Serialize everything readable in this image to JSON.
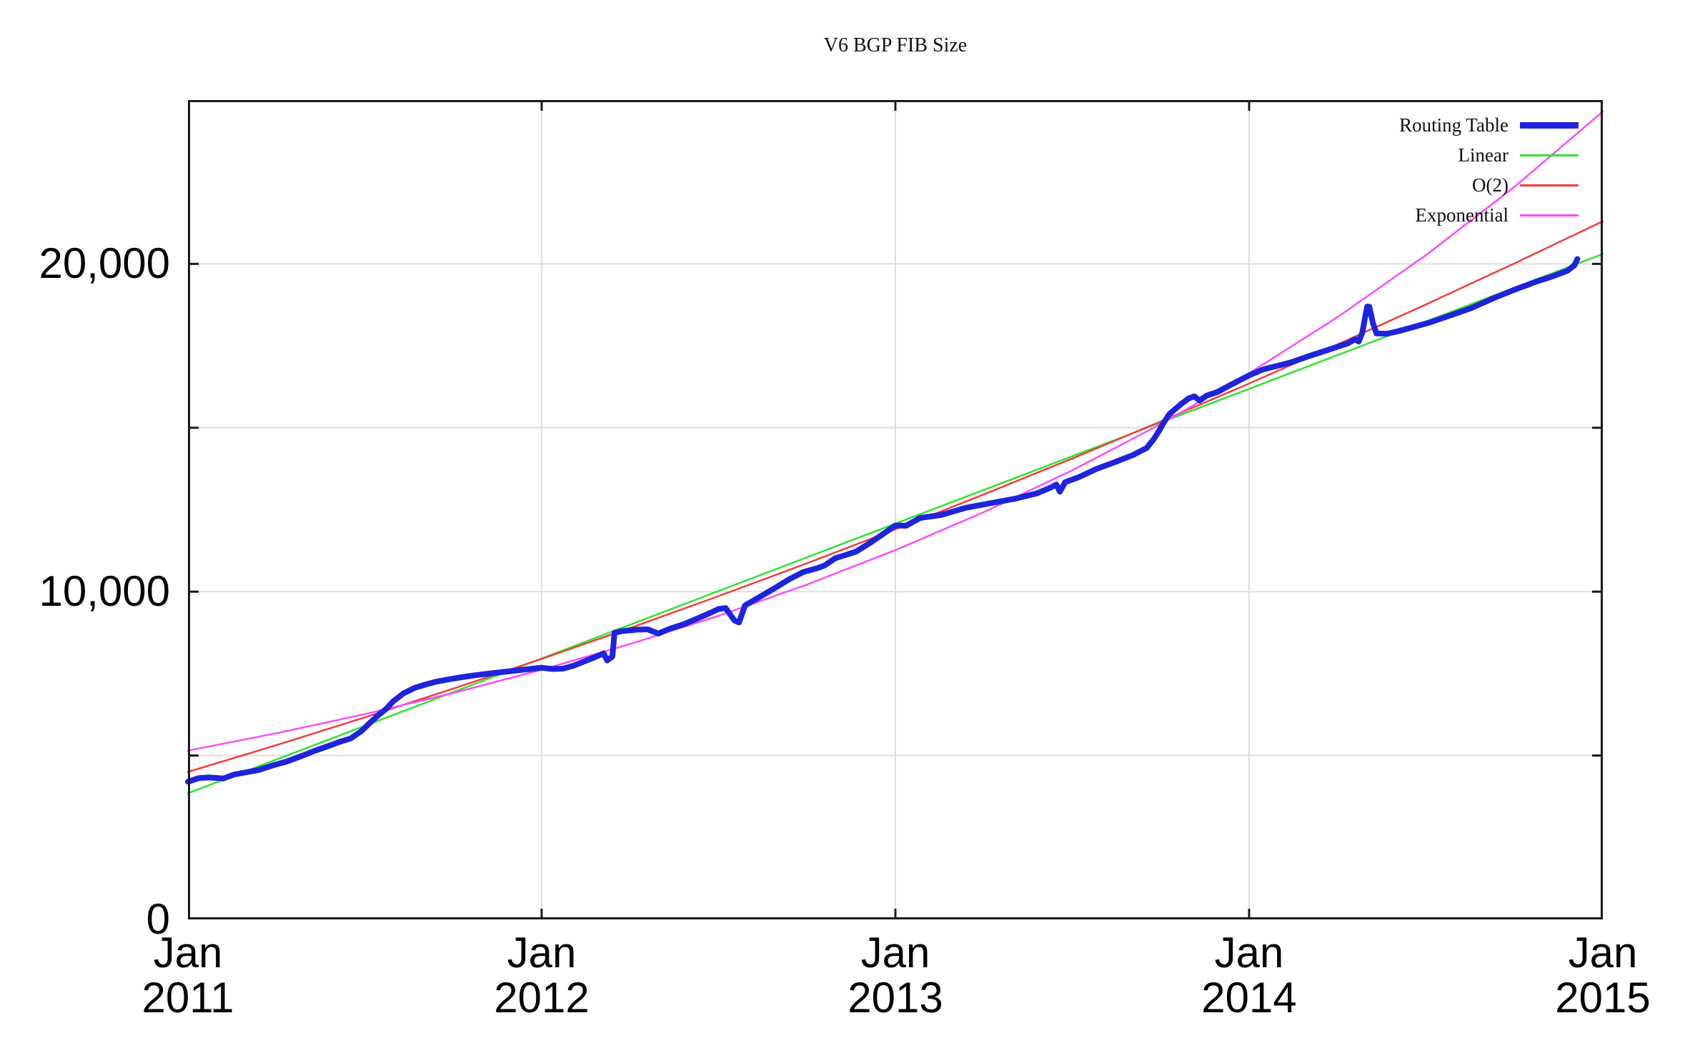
{
  "chart_data": {
    "type": "line",
    "title": "V6 BGP FIB Size",
    "x_axis": {
      "label_month": "Jan",
      "tick_years": [
        2011,
        2012,
        2013,
        2014,
        2015
      ],
      "min_year": 2011,
      "max_year": 2015,
      "gridline_years": [
        2012,
        2013,
        2014
      ]
    },
    "y_axis": {
      "min": 0,
      "max": 25000,
      "labeled_ticks": [
        {
          "value": 0,
          "label": "0"
        },
        {
          "value": 10000,
          "label": "10,000"
        },
        {
          "value": 20000,
          "label": "20,000"
        }
      ],
      "gridline_values": [
        5000,
        10000,
        15000,
        20000
      ],
      "tick_values": [
        5000,
        10000,
        15000,
        20000
      ]
    },
    "legend_position": "top-right-inside",
    "grid": true,
    "colors": {
      "routing_table": "#1e24dc",
      "linear": "#2fe42f",
      "o2": "#f23d3d",
      "exponential": "#fc4cfc",
      "gridline": "#dedede",
      "border": "#1a1a1a"
    },
    "series": [
      {
        "name": "Routing Table",
        "key": "routing_table",
        "color": "#1e24dc",
        "stroke_width": 8,
        "points": [
          [
            2011.0,
            4200
          ],
          [
            2011.03,
            4310
          ],
          [
            2011.06,
            4330
          ],
          [
            2011.1,
            4300
          ],
          [
            2011.13,
            4420
          ],
          [
            2011.16,
            4480
          ],
          [
            2011.2,
            4560
          ],
          [
            2011.24,
            4700
          ],
          [
            2011.28,
            4820
          ],
          [
            2011.32,
            4980
          ],
          [
            2011.36,
            5150
          ],
          [
            2011.4,
            5300
          ],
          [
            2011.43,
            5420
          ],
          [
            2011.46,
            5520
          ],
          [
            2011.49,
            5740
          ],
          [
            2011.51,
            5950
          ],
          [
            2011.54,
            6250
          ],
          [
            2011.56,
            6420
          ],
          [
            2011.58,
            6650
          ],
          [
            2011.61,
            6900
          ],
          [
            2011.64,
            7060
          ],
          [
            2011.67,
            7160
          ],
          [
            2011.7,
            7250
          ],
          [
            2011.74,
            7330
          ],
          [
            2011.78,
            7400
          ],
          [
            2011.82,
            7460
          ],
          [
            2011.86,
            7510
          ],
          [
            2011.9,
            7560
          ],
          [
            2011.95,
            7620
          ],
          [
            2012.0,
            7680
          ],
          [
            2012.03,
            7640
          ],
          [
            2012.06,
            7650
          ],
          [
            2012.09,
            7740
          ],
          [
            2012.12,
            7870
          ],
          [
            2012.15,
            8000
          ],
          [
            2012.175,
            8120
          ],
          [
            2012.185,
            7900
          ],
          [
            2012.2,
            8020
          ],
          [
            2012.206,
            8750
          ],
          [
            2012.23,
            8800
          ],
          [
            2012.27,
            8840
          ],
          [
            2012.3,
            8850
          ],
          [
            2012.33,
            8720
          ],
          [
            2012.36,
            8860
          ],
          [
            2012.4,
            9000
          ],
          [
            2012.44,
            9180
          ],
          [
            2012.47,
            9320
          ],
          [
            2012.5,
            9470
          ],
          [
            2012.52,
            9500
          ],
          [
            2012.545,
            9120
          ],
          [
            2012.558,
            9060
          ],
          [
            2012.575,
            9580
          ],
          [
            2012.61,
            9800
          ],
          [
            2012.65,
            10050
          ],
          [
            2012.7,
            10380
          ],
          [
            2012.74,
            10600
          ],
          [
            2012.78,
            10720
          ],
          [
            2012.8,
            10800
          ],
          [
            2012.83,
            11020
          ],
          [
            2012.86,
            11120
          ],
          [
            2012.89,
            11230
          ],
          [
            2012.93,
            11500
          ],
          [
            2012.96,
            11720
          ],
          [
            2013.0,
            12020
          ],
          [
            2013.03,
            12010
          ],
          [
            2013.07,
            12250
          ],
          [
            2013.13,
            12340
          ],
          [
            2013.2,
            12560
          ],
          [
            2013.27,
            12700
          ],
          [
            2013.34,
            12840
          ],
          [
            2013.4,
            13000
          ],
          [
            2013.44,
            13180
          ],
          [
            2013.455,
            13270
          ],
          [
            2013.465,
            13050
          ],
          [
            2013.48,
            13340
          ],
          [
            2013.52,
            13500
          ],
          [
            2013.57,
            13750
          ],
          [
            2013.62,
            13950
          ],
          [
            2013.67,
            14160
          ],
          [
            2013.71,
            14380
          ],
          [
            2013.73,
            14650
          ],
          [
            2013.745,
            14900
          ],
          [
            2013.76,
            15180
          ],
          [
            2013.775,
            15420
          ],
          [
            2013.79,
            15560
          ],
          [
            2013.81,
            15740
          ],
          [
            2013.83,
            15900
          ],
          [
            2013.845,
            15960
          ],
          [
            2013.86,
            15830
          ],
          [
            2013.88,
            15980
          ],
          [
            2013.91,
            16090
          ],
          [
            2013.95,
            16320
          ],
          [
            2014.0,
            16600
          ],
          [
            2014.04,
            16780
          ],
          [
            2014.08,
            16890
          ],
          [
            2014.12,
            17000
          ],
          [
            2014.17,
            17190
          ],
          [
            2014.23,
            17400
          ],
          [
            2014.28,
            17580
          ],
          [
            2014.3,
            17700
          ],
          [
            2014.31,
            17630
          ],
          [
            2014.32,
            17900
          ],
          [
            2014.327,
            18320
          ],
          [
            2014.334,
            18700
          ],
          [
            2014.34,
            18690
          ],
          [
            2014.35,
            18200
          ],
          [
            2014.36,
            17880
          ],
          [
            2014.39,
            17870
          ],
          [
            2014.42,
            17940
          ],
          [
            2014.46,
            18060
          ],
          [
            2014.51,
            18210
          ],
          [
            2014.57,
            18430
          ],
          [
            2014.63,
            18660
          ],
          [
            2014.69,
            18950
          ],
          [
            2014.75,
            19210
          ],
          [
            2014.81,
            19450
          ],
          [
            2014.86,
            19630
          ],
          [
            2014.9,
            19790
          ],
          [
            2014.92,
            19960
          ],
          [
            2014.928,
            20150
          ]
        ]
      },
      {
        "name": "Linear",
        "key": "linear",
        "color": "#2fe42f",
        "stroke_width": 2.5,
        "points": [
          [
            2011,
            3850
          ],
          [
            2015,
            20300
          ]
        ]
      },
      {
        "name": "O(2)",
        "key": "o2",
        "color": "#f23d3d",
        "stroke_width": 2.5,
        "points": [
          [
            2011,
            4500
          ],
          [
            2011.25,
            5316
          ],
          [
            2011.5,
            6163
          ],
          [
            2011.75,
            7041
          ],
          [
            2012,
            7950
          ],
          [
            2012.25,
            8891
          ],
          [
            2012.5,
            9863
          ],
          [
            2012.75,
            10866
          ],
          [
            2013,
            11900
          ],
          [
            2013.25,
            12966
          ],
          [
            2013.5,
            14063
          ],
          [
            2013.75,
            15191
          ],
          [
            2014,
            16350
          ],
          [
            2014.25,
            17541
          ],
          [
            2014.5,
            18763
          ],
          [
            2014.75,
            20016
          ],
          [
            2015,
            21300
          ]
        ]
      },
      {
        "name": "Exponential",
        "key": "exponential",
        "color": "#fc4cfc",
        "stroke_width": 2.5,
        "points": [
          [
            2011,
            5150
          ],
          [
            2011.25,
            5679
          ],
          [
            2011.5,
            6263
          ],
          [
            2011.75,
            6907
          ],
          [
            2012,
            7617
          ],
          [
            2012.25,
            8400
          ],
          [
            2012.5,
            9264
          ],
          [
            2012.75,
            10216
          ],
          [
            2013,
            11266
          ],
          [
            2013.25,
            12425
          ],
          [
            2013.5,
            13702
          ],
          [
            2013.75,
            15111
          ],
          [
            2014,
            16664
          ],
          [
            2014.25,
            18377
          ],
          [
            2014.5,
            20266
          ],
          [
            2014.75,
            22350
          ],
          [
            2015,
            24648
          ]
        ]
      }
    ]
  }
}
